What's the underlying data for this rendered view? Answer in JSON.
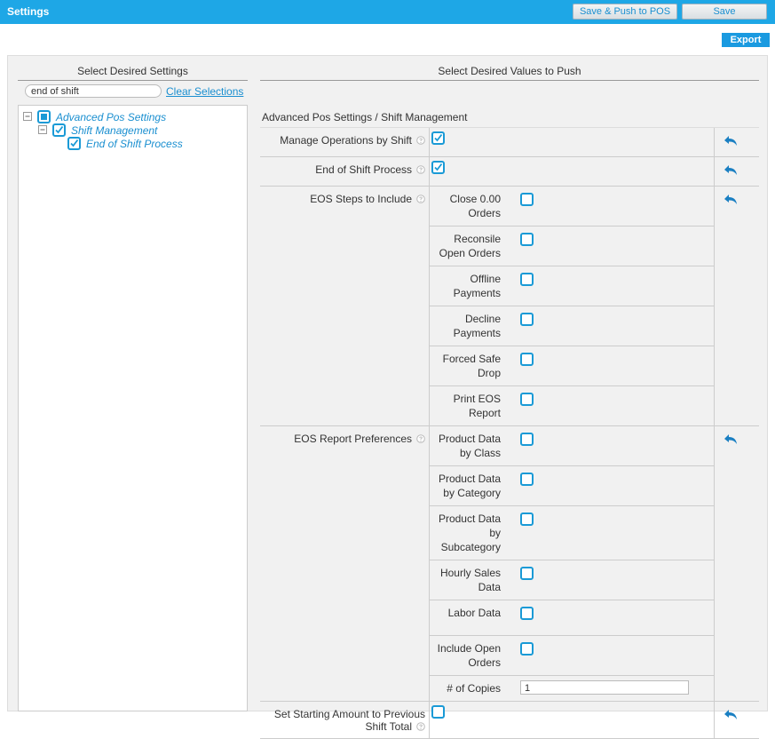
{
  "header": {
    "title": "Settings",
    "buttons": [
      "Save & Push to POS",
      "Save"
    ]
  },
  "export": "Export",
  "left": {
    "title": "Select Desired Settings",
    "search": "end of shift",
    "clear": "Clear Selections",
    "tree": [
      {
        "label": "Advanced Pos Settings",
        "level": 0,
        "state": "partial"
      },
      {
        "label": "Shift Management",
        "level": 1,
        "state": "checked"
      },
      {
        "label": "End of Shift Process",
        "level": 2,
        "state": "checked"
      }
    ]
  },
  "right": {
    "title": "Select Desired Values to Push",
    "section": "Advanced Pos Settings / Shift Management",
    "rows": [
      {
        "label": "Manage Operations by Shift",
        "checked": true
      },
      {
        "label": "End of Shift Process",
        "checked": true
      },
      {
        "label": "EOS Steps to Include",
        "items": [
          {
            "label": "Close 0.00 Orders",
            "checked": false
          },
          {
            "label": "Reconsile Open Orders",
            "checked": false
          },
          {
            "label": "Offline Payments",
            "checked": false
          },
          {
            "label": "Decline Payments",
            "checked": false
          },
          {
            "label": "Forced Safe Drop",
            "checked": false
          },
          {
            "label": "Print EOS Report",
            "checked": false
          }
        ]
      },
      {
        "label": "EOS Report Preferences",
        "items": [
          {
            "label": "Product Data by Class",
            "checked": false
          },
          {
            "label": "Product Data by Category",
            "checked": false
          },
          {
            "label": "Product Data by Subcategory",
            "checked": false
          },
          {
            "label": "Hourly Sales Data",
            "checked": false
          },
          {
            "label": "Labor Data",
            "checked": false
          },
          {
            "label": "Include Open Orders",
            "checked": false
          },
          {
            "label": "# of Copies",
            "input": "1"
          }
        ]
      },
      {
        "label": "Set Starting Amount to Previous Shift Total",
        "checked": false
      }
    ]
  }
}
